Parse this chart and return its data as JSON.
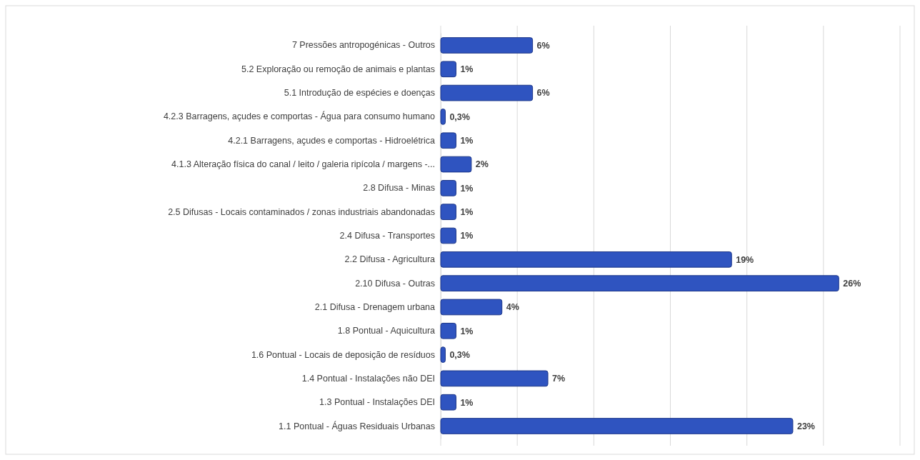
{
  "chart_data": {
    "type": "bar",
    "orientation": "horizontal",
    "categories": [
      "7 Pressões antropogénicas - Outros",
      "5.2 Exploração ou remoção de animais e plantas",
      "5.1 Introdução de espécies e doenças",
      "4.2.3 Barragens, açudes e comportas - Água para consumo humano",
      "4.2.1 Barragens, açudes e comportas - Hidroelétrica",
      "4.1.3 Alteração física do canal / leito / galeria ripícola / margens -...",
      "2.8 Difusa - Minas",
      "2.5 Difusas - Locais contaminados / zonas industriais abandonadas",
      "2.4 Difusa - Transportes",
      "2.2 Difusa - Agricultura",
      "2.10 Difusa - Outras",
      "2.1 Difusa - Drenagem urbana",
      "1.8 Pontual - Aquicultura",
      "1.6 Pontual - Locais de deposição de resíduos",
      "1.4 Pontual - Instalações não DEI",
      "1.3 Pontual - Instalações DEI",
      "1.1 Pontual - Águas Residuais Urbanas"
    ],
    "values": [
      6,
      1,
      6,
      0.3,
      1,
      2,
      1,
      1,
      1,
      19,
      26,
      4,
      1,
      0.3,
      7,
      1,
      23
    ],
    "value_labels": [
      "6%",
      "1%",
      "6%",
      "0,3%",
      "1%",
      "2%",
      "1%",
      "1%",
      "1%",
      "19%",
      "26%",
      "4%",
      "1%",
      "0,3%",
      "7%",
      "1%",
      "23%"
    ],
    "color": "#2f54c0",
    "xlim": [
      0,
      30
    ],
    "xticks": [
      {
        "value": 0,
        "label": null
      },
      {
        "value": 5,
        "label": null
      },
      {
        "value": 10,
        "label": null
      },
      {
        "value": 15,
        "label": null
      },
      {
        "value": 20,
        "label": null
      },
      {
        "value": 25,
        "label": null
      },
      {
        "value": 30,
        "label": null
      }
    ],
    "tick_labels": "y",
    "grid": "x"
  }
}
